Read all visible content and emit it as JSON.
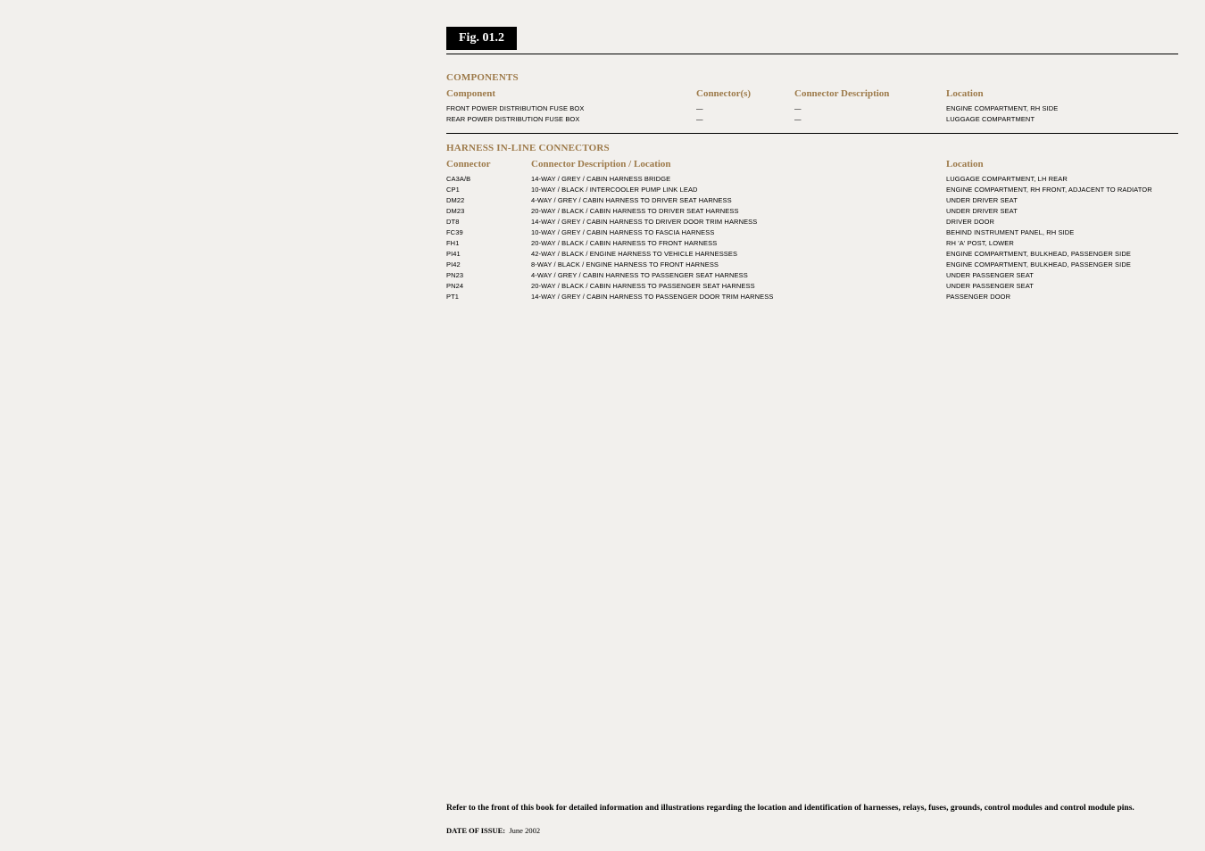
{
  "figure_label": "Fig. 01.2",
  "components": {
    "section_title": "COMPONENTS",
    "headers": {
      "component": "Component",
      "connectors": "Connector(s)",
      "description": "Connector Description",
      "location": "Location"
    },
    "rows": [
      {
        "component": "FRONT POWER DISTRIBUTION FUSE BOX",
        "connectors": "—",
        "description": "—",
        "location": "ENGINE COMPARTMENT, RH SIDE"
      },
      {
        "component": "REAR POWER DISTRIBUTION FUSE BOX",
        "connectors": "—",
        "description": "—",
        "location": "LUGGAGE COMPARTMENT"
      }
    ]
  },
  "harness": {
    "section_title": "HARNESS IN-LINE CONNECTORS",
    "headers": {
      "connector": "Connector",
      "description": "Connector Description / Location",
      "location": "Location"
    },
    "rows": [
      {
        "connector": "CA3A/B",
        "description": "14-WAY / GREY / CABIN HARNESS BRIDGE",
        "location": "LUGGAGE COMPARTMENT, LH REAR"
      },
      {
        "connector": "CP1",
        "description": "10-WAY / BLACK / INTERCOOLER PUMP LINK LEAD",
        "location": "ENGINE COMPARTMENT, RH FRONT, ADJACENT TO RADIATOR"
      },
      {
        "connector": "DM22",
        "description": "4-WAY / GREY / CABIN HARNESS TO DRIVER SEAT HARNESS",
        "location": "UNDER DRIVER SEAT"
      },
      {
        "connector": "DM23",
        "description": "20-WAY / BLACK / CABIN HARNESS TO DRIVER SEAT HARNESS",
        "location": "UNDER DRIVER SEAT"
      },
      {
        "connector": "DT8",
        "description": "14-WAY / GREY / CABIN HARNESS TO DRIVER DOOR TRIM HARNESS",
        "location": "DRIVER DOOR"
      },
      {
        "connector": "FC39",
        "description": "10-WAY / GREY / CABIN HARNESS TO FASCIA HARNESS",
        "location": "BEHIND INSTRUMENT PANEL, RH SIDE"
      },
      {
        "connector": "FH1",
        "description": "20-WAY / BLACK / CABIN HARNESS TO FRONT HARNESS",
        "location": "RH 'A' POST, LOWER"
      },
      {
        "connector": "PI41",
        "description": "42-WAY / BLACK / ENGINE HARNESS TO VEHICLE HARNESSES",
        "location": "ENGINE COMPARTMENT, BULKHEAD, PASSENGER SIDE"
      },
      {
        "connector": "PI42",
        "description": "8-WAY / BLACK / ENGINE HARNESS TO FRONT HARNESS",
        "location": "ENGINE COMPARTMENT, BULKHEAD, PASSENGER SIDE"
      },
      {
        "connector": "PN23",
        "description": "4-WAY / GREY / CABIN HARNESS TO PASSENGER SEAT HARNESS",
        "location": "UNDER PASSENGER SEAT"
      },
      {
        "connector": "PN24",
        "description": "20-WAY / BLACK / CABIN HARNESS TO PASSENGER SEAT HARNESS",
        "location": "UNDER PASSENGER SEAT"
      },
      {
        "connector": "PT1",
        "description": "14-WAY / GREY / CABIN HARNESS TO PASSENGER DOOR TRIM HARNESS",
        "location": "PASSENGER DOOR"
      }
    ]
  },
  "footer_text": "Refer to the front of this book for detailed information and illustrations regarding the location and identification of harnesses, relays, fuses, grounds, control modules and control module pins.",
  "date_label": "DATE OF ISSUE:",
  "date_value": "June 2002"
}
